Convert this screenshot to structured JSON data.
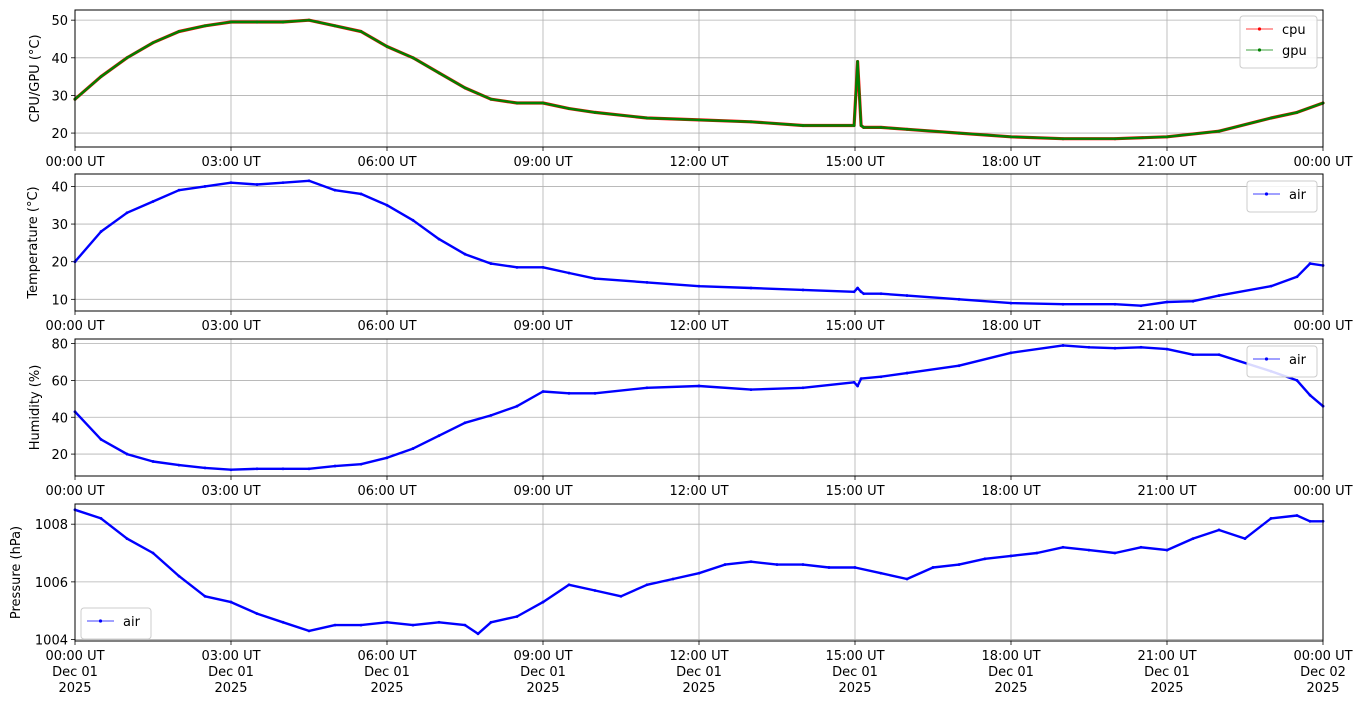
{
  "chart_data": [
    {
      "type": "line",
      "ylabel": "CPU/GPU (°C)",
      "ylim": [
        16.3,
        52.7
      ],
      "yticks": [
        20,
        30,
        40,
        50
      ],
      "xlim": [
        "00:00",
        "24:00"
      ],
      "xtick_labels": [
        "00:00 UT",
        "03:00 UT",
        "06:00 UT",
        "09:00 UT",
        "12:00 UT",
        "15:00 UT",
        "18:00 UT",
        "21:00 UT",
        "00:00 UT"
      ],
      "grid": true,
      "legend_position": "upper right",
      "series": [
        {
          "name": "cpu",
          "color": "#ff0000",
          "x": [
            "00:00",
            "00:30",
            "01:00",
            "01:30",
            "02:00",
            "02:30",
            "03:00",
            "03:30",
            "04:00",
            "04:30",
            "05:00",
            "05:30",
            "06:00",
            "06:30",
            "07:00",
            "07:30",
            "08:00",
            "08:30",
            "09:00",
            "09:30",
            "10:00",
            "11:00",
            "12:00",
            "13:00",
            "14:00",
            "14:59",
            "15:03",
            "15:07",
            "15:10",
            "15:30",
            "16:00",
            "17:00",
            "18:00",
            "19:00",
            "20:00",
            "21:00",
            "22:00",
            "23:00",
            "23:30",
            "24:00"
          ],
          "y": [
            29,
            35,
            40,
            44,
            47,
            48.5,
            49.5,
            49.5,
            49.5,
            50,
            48.5,
            47,
            43,
            40,
            36,
            32,
            29,
            28,
            28,
            26.5,
            25.5,
            24,
            23.5,
            23,
            22,
            22,
            39,
            22,
            21.5,
            21.5,
            21,
            20,
            19,
            18.5,
            18.5,
            19,
            20.5,
            24,
            25.5,
            28
          ]
        },
        {
          "name": "gpu",
          "color": "#008000",
          "x": [
            "00:00",
            "00:30",
            "01:00",
            "01:30",
            "02:00",
            "02:30",
            "03:00",
            "03:30",
            "04:00",
            "04:30",
            "05:00",
            "05:30",
            "06:00",
            "06:30",
            "07:00",
            "07:30",
            "08:00",
            "08:30",
            "09:00",
            "09:30",
            "10:00",
            "11:00",
            "12:00",
            "13:00",
            "14:00",
            "14:59",
            "15:03",
            "15:07",
            "15:10",
            "15:30",
            "16:00",
            "17:00",
            "18:00",
            "19:00",
            "20:00",
            "21:00",
            "22:00",
            "23:00",
            "23:30",
            "24:00"
          ],
          "y": [
            29,
            35,
            40,
            44,
            47,
            48.5,
            49.5,
            49.5,
            49.5,
            50,
            48.5,
            47,
            43,
            40,
            36,
            32,
            29,
            28,
            28,
            26.5,
            25.5,
            24,
            23.5,
            23,
            22,
            22,
            39,
            22,
            21.5,
            21.5,
            21,
            20,
            19,
            18.5,
            18.5,
            19,
            20.5,
            24,
            25.5,
            28
          ]
        }
      ]
    },
    {
      "type": "line",
      "ylabel": "Temperature (°C)",
      "ylim": [
        6.9,
        43.3
      ],
      "yticks": [
        10,
        20,
        30,
        40
      ],
      "xlim": [
        "00:00",
        "24:00"
      ],
      "xtick_labels": [
        "00:00 UT",
        "03:00 UT",
        "06:00 UT",
        "09:00 UT",
        "12:00 UT",
        "15:00 UT",
        "18:00 UT",
        "21:00 UT",
        "00:00 UT"
      ],
      "grid": true,
      "legend_position": "upper right",
      "series": [
        {
          "name": "air",
          "color": "#0000ff",
          "x": [
            "00:00",
            "00:30",
            "01:00",
            "01:30",
            "02:00",
            "02:30",
            "03:00",
            "03:30",
            "04:00",
            "04:30",
            "05:00",
            "05:30",
            "06:00",
            "06:30",
            "07:00",
            "07:30",
            "08:00",
            "08:30",
            "09:00",
            "09:30",
            "10:00",
            "11:00",
            "12:00",
            "13:00",
            "14:00",
            "14:59",
            "15:03",
            "15:07",
            "15:10",
            "15:30",
            "16:00",
            "17:00",
            "18:00",
            "19:00",
            "20:00",
            "20:30",
            "21:00",
            "21:30",
            "22:00",
            "23:00",
            "23:30",
            "23:45",
            "24:00"
          ],
          "y": [
            20,
            28,
            33,
            36,
            39,
            40,
            41,
            40.5,
            41,
            41.5,
            39,
            38,
            35,
            31,
            26,
            22,
            19.5,
            18.5,
            18.5,
            17,
            15.5,
            14.5,
            13.5,
            13,
            12.5,
            12,
            13,
            12,
            11.5,
            11.5,
            11,
            10,
            9,
            8.7,
            8.7,
            8.3,
            9.3,
            9.5,
            11,
            13.5,
            16,
            19.5,
            19
          ]
        }
      ]
    },
    {
      "type": "line",
      "ylabel": "Humidity (%)",
      "ylim": [
        8.1,
        82.5
      ],
      "yticks": [
        20,
        40,
        60,
        80
      ],
      "xlim": [
        "00:00",
        "24:00"
      ],
      "xtick_labels": [
        "00:00 UT",
        "03:00 UT",
        "06:00 UT",
        "09:00 UT",
        "12:00 UT",
        "15:00 UT",
        "18:00 UT",
        "21:00 UT",
        "00:00 UT"
      ],
      "grid": true,
      "legend_position": "upper right",
      "series": [
        {
          "name": "air",
          "color": "#0000ff",
          "x": [
            "00:00",
            "00:30",
            "01:00",
            "01:30",
            "02:00",
            "02:30",
            "03:00",
            "03:30",
            "04:00",
            "04:30",
            "05:00",
            "05:30",
            "06:00",
            "06:30",
            "07:00",
            "07:30",
            "08:00",
            "08:30",
            "09:00",
            "09:30",
            "10:00",
            "11:00",
            "12:00",
            "13:00",
            "14:00",
            "14:59",
            "15:03",
            "15:07",
            "15:30",
            "16:00",
            "17:00",
            "18:00",
            "19:00",
            "19:30",
            "20:00",
            "20:30",
            "21:00",
            "21:30",
            "22:00",
            "23:00",
            "23:30",
            "23:45",
            "24:00"
          ],
          "y": [
            43,
            28,
            20,
            16,
            14,
            12.5,
            11.5,
            12,
            12,
            12,
            13.5,
            14.5,
            18,
            23,
            30,
            37,
            41,
            46,
            54,
            53,
            53,
            56,
            57,
            55,
            56,
            59,
            57,
            61,
            62,
            64,
            68,
            75,
            79,
            78,
            77.5,
            78,
            77,
            74,
            74,
            65,
            60,
            52,
            46
          ]
        }
      ]
    },
    {
      "type": "line",
      "ylabel": "Pressure (hPa)",
      "ylim": [
        1003.95,
        1008.7
      ],
      "yticks": [
        1004,
        1006,
        1008
      ],
      "xlim": [
        "00:00",
        "24:00"
      ],
      "xtick_labels": [
        "00:00 UT\nDec 01\n2025",
        "03:00 UT\nDec 01\n2025",
        "06:00 UT\nDec 01\n2025",
        "09:00 UT\nDec 01\n2025",
        "12:00 UT\nDec 01\n2025",
        "15:00 UT\nDec 01\n2025",
        "18:00 UT\nDec 01\n2025",
        "21:00 UT\nDec 01\n2025",
        "00:00 UT\nDec 02\n2025"
      ],
      "grid": true,
      "legend_position": "lower left",
      "series": [
        {
          "name": "air",
          "color": "#0000ff",
          "x": [
            "00:00",
            "00:30",
            "01:00",
            "01:30",
            "02:00",
            "02:30",
            "03:00",
            "03:30",
            "04:00",
            "04:30",
            "05:00",
            "05:30",
            "06:00",
            "06:30",
            "07:00",
            "07:30",
            "07:45",
            "08:00",
            "08:30",
            "09:00",
            "09:30",
            "10:00",
            "10:30",
            "11:00",
            "11:30",
            "12:00",
            "12:30",
            "13:00",
            "13:30",
            "14:00",
            "14:30",
            "15:00",
            "15:30",
            "16:00",
            "16:30",
            "17:00",
            "17:30",
            "18:00",
            "18:30",
            "19:00",
            "19:30",
            "20:00",
            "20:30",
            "21:00",
            "21:30",
            "22:00",
            "22:30",
            "23:00",
            "23:30",
            "23:45",
            "24:00"
          ],
          "y": [
            1008.5,
            1008.2,
            1007.5,
            1007,
            1006.2,
            1005.5,
            1005.3,
            1004.9,
            1004.6,
            1004.3,
            1004.5,
            1004.5,
            1004.6,
            1004.5,
            1004.6,
            1004.5,
            1004.2,
            1004.6,
            1004.8,
            1005.3,
            1005.9,
            1005.7,
            1005.5,
            1005.9,
            1006.1,
            1006.3,
            1006.6,
            1006.7,
            1006.6,
            1006.6,
            1006.5,
            1006.5,
            1006.3,
            1006.1,
            1006.5,
            1006.6,
            1006.8,
            1006.9,
            1007,
            1007.2,
            1007.1,
            1007,
            1007.2,
            1007.1,
            1007.5,
            1007.8,
            1007.5,
            1008.2,
            1008.3,
            1008.1,
            1008.1
          ]
        }
      ]
    }
  ]
}
